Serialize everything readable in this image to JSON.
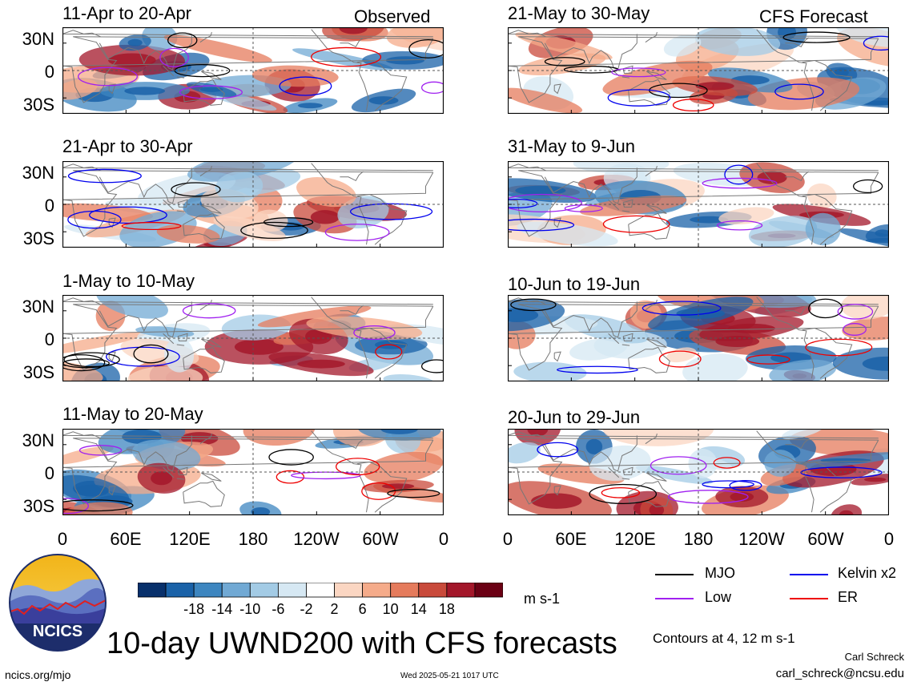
{
  "chart_data": {
    "type": "heatmap",
    "title": "10-day UWND200 with CFS forecasts",
    "variable": "UWND200",
    "units": "m s-1",
    "contour_note": "Contours at 4, 12 m s-1",
    "column_headers": [
      "Observed",
      "CFS Forecast"
    ],
    "panels": [
      {
        "column": "Observed",
        "period": "11-Apr to 20-Apr"
      },
      {
        "column": "Observed",
        "period": "21-Apr to 30-Apr"
      },
      {
        "column": "Observed",
        "period": "1-May to 10-May"
      },
      {
        "column": "Observed",
        "period": "11-May to 20-May"
      },
      {
        "column": "CFS Forecast",
        "period": "21-May to 30-May"
      },
      {
        "column": "CFS Forecast",
        "period": "31-May to 9-Jun"
      },
      {
        "column": "CFS Forecast",
        "period": "10-Jun to 19-Jun"
      },
      {
        "column": "CFS Forecast",
        "period": "20-Jun to 29-Jun"
      }
    ],
    "x_ticks": [
      "0",
      "60E",
      "120E",
      "180",
      "120W",
      "60W",
      "0"
    ],
    "y_ticks": [
      "30N",
      "0",
      "30S"
    ],
    "colorbar": {
      "ticks": [
        "-18",
        "-14",
        "-10",
        "-6",
        "-2",
        "2",
        "6",
        "10",
        "14",
        "18"
      ],
      "colors": [
        "#08306b",
        "#1a62a8",
        "#3d86c0",
        "#71a9d4",
        "#a3cbe5",
        "#d6e8f3",
        "#ffffff",
        "#fbd6c2",
        "#f5ab8a",
        "#e57b5c",
        "#c94a3b",
        "#a3172a",
        "#6b0014"
      ]
    },
    "legend": [
      {
        "label": "MJO",
        "color": "#000000"
      },
      {
        "label": "Kelvin x2",
        "color": "#0000ee"
      },
      {
        "label": "Low",
        "color": "#a020f0"
      },
      {
        "label": "ER",
        "color": "#ee0000"
      }
    ],
    "grid": true,
    "dashed_reference_lines": [
      "equator",
      "180"
    ]
  },
  "branding": {
    "logo_text": "NCICS",
    "site": "ncics.org/mjo",
    "timestamp": "Wed 2025-05-21 1017 UTC",
    "author": "Carl Schreck",
    "email": "carl_schreck@ncsu.edu"
  }
}
